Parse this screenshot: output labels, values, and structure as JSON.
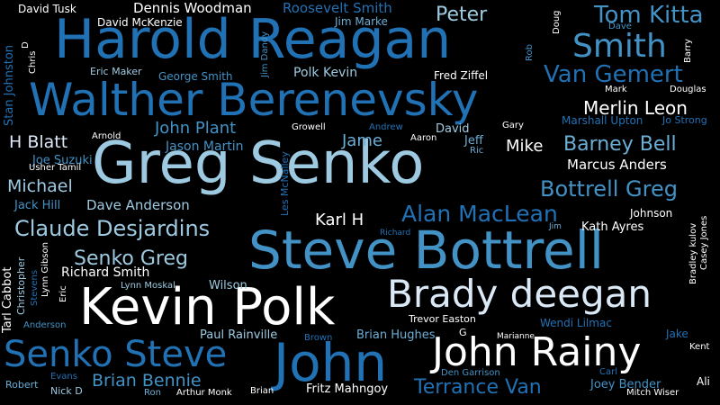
{
  "colors": {
    "background": "#000000",
    "white": "#ffffff",
    "pale": "#dbe9f6",
    "light": "#9ecae1",
    "mid": "#6baed6",
    "blue": "#4292c6",
    "deep": "#2171b5",
    "dark": "#08519c"
  },
  "words": [
    "Greg Senko",
    "Steve Bottrell",
    "Harold Reagan",
    "Walther Berenevsky",
    "Kevin Polk",
    "Brady deegan",
    "John",
    "John Rainy",
    "Senko Steve",
    "Smith",
    "Tom Kitta",
    "Van Gemert",
    "Claude Desjardins",
    "Alan MacLean",
    "Bottrell Greg",
    "Barney Bell",
    "Merlin Leon",
    "Terrance Van",
    "Senko Greg",
    "Peter",
    "Michael",
    "Brian Bennie",
    "John Plant",
    "H Blatt",
    "Jame",
    "Karl H",
    "Mike",
    "Marcus Anders",
    "Dave Anderson",
    "Dennis Woodman",
    "Roosevelt Smith",
    "Polk Kevin",
    "Jason Martin",
    "Richard Smith",
    "Brian Hughes",
    "Paul Rainville",
    "Fritz Mahngoy",
    "Jack Hill",
    "Joe Suzuki",
    "Kath Ayres",
    "Wilson",
    "Trevor Easton",
    "Wendi Lilmac",
    "Joey Bender",
    "Jeff",
    "David",
    "Fred Ziffel",
    "George Smith",
    "Johnson",
    "Jake",
    "Marshall Upton",
    "Jo Strong",
    "David Tusk",
    "David McKenzie",
    "Jim Marke",
    "Eric Maker",
    "Mark",
    "Douglas",
    "Arnold",
    "Usher Tamil",
    "Growell",
    "Andrew",
    "Aaron",
    "Gary",
    "Ric",
    "Lynn Moskal",
    "Anderson",
    "Brown",
    "Den Garrison",
    "Marianne",
    "Kent",
    "Ali",
    "Robert",
    "Evans",
    "Nick D",
    "Ron",
    "Arthur Monk",
    "Brian",
    "Mitch Wiser",
    "Carl",
    "Richard",
    "Jim",
    "G",
    "Dave",
    "Stan Johnston",
    "Chris",
    "D",
    "Jim Dandy",
    "Rob",
    "Doug",
    "Barry",
    "Les McNalley",
    "Tarl Cabbot",
    "Christopher",
    "Lynn Gibson",
    "Stevens",
    "Eric",
    "Bradley kulov",
    "Casey Jones"
  ]
}
